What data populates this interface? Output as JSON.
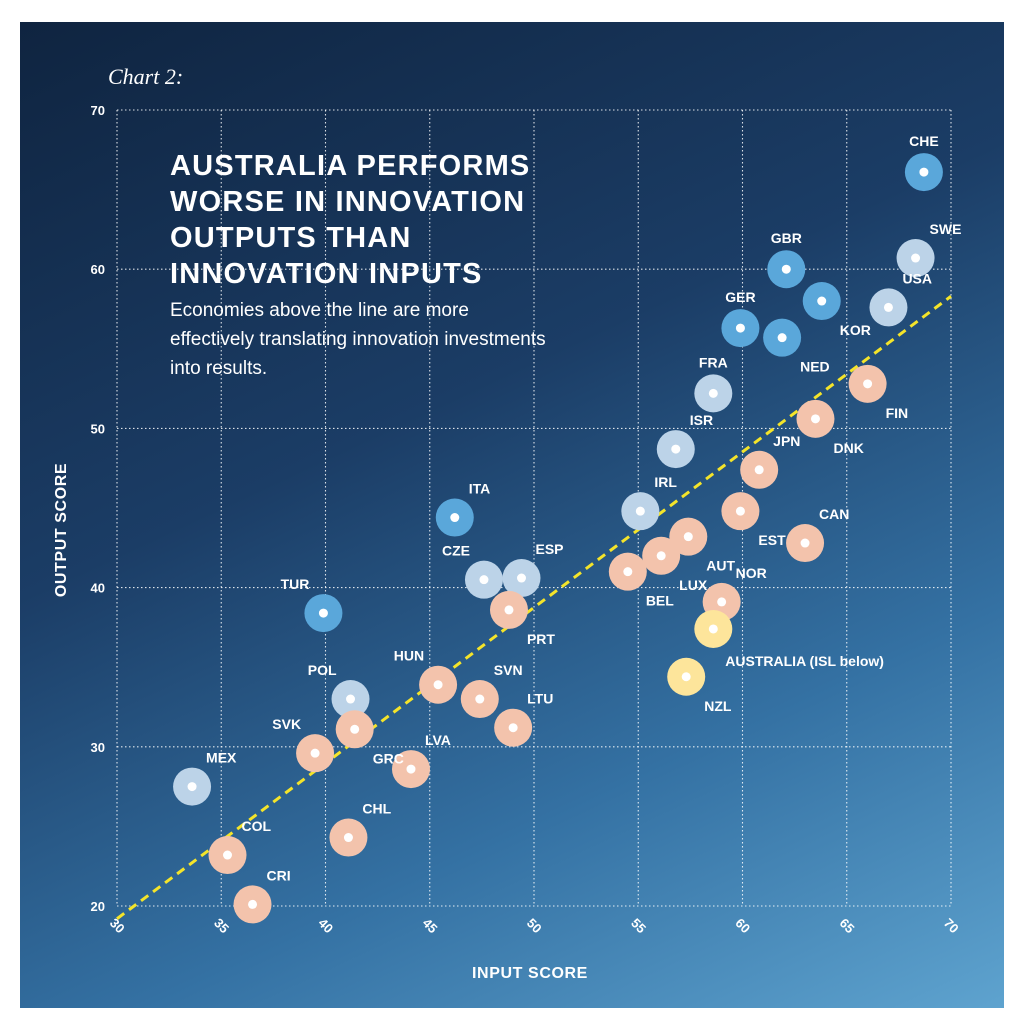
{
  "caption": "Chart 2:",
  "headline": "AUSTRALIA PERFORMS WORSE IN INNOVATION OUTPUTS THAN INNOVATION INPUTS",
  "subtitle": "Economies above the line are more effectively translating innovation investments into results.",
  "colors": {
    "dark_blue": "#5aa7da",
    "light_blue": "#bcd3e8",
    "peach": "#f3c3ac",
    "yellow": "#fde59b",
    "trend_line": "#f4e42a"
  },
  "chart_data": {
    "type": "scatter",
    "xlabel": "INPUT SCORE",
    "ylabel": "OUTPUT SCORE",
    "xlim": [
      30,
      70
    ],
    "ylim": [
      20,
      70
    ],
    "x_ticks": [
      30,
      35,
      40,
      45,
      50,
      55,
      60,
      65,
      70
    ],
    "y_ticks": [
      20,
      30,
      40,
      50,
      60,
      70
    ],
    "grid": true,
    "trend_line": {
      "x": [
        30,
        70
      ],
      "y": [
        19.2,
        58.3
      ]
    },
    "points": [
      {
        "label": "CHE",
        "x": 68.7,
        "y": 66.1,
        "color": "dark_blue",
        "label_pos": "above"
      },
      {
        "label": "SWE",
        "x": 68.3,
        "y": 60.7,
        "color": "light_blue",
        "label_pos": "above-right"
      },
      {
        "label": "GBR",
        "x": 62.1,
        "y": 60.0,
        "color": "dark_blue",
        "label_pos": "above"
      },
      {
        "label": "USA",
        "x": 67.0,
        "y": 57.6,
        "color": "light_blue",
        "label_pos": "above-right"
      },
      {
        "label": "KOR",
        "x": 63.8,
        "y": 58.0,
        "color": "dark_blue",
        "label_pos": "below-right"
      },
      {
        "label": "GER",
        "x": 59.9,
        "y": 56.3,
        "color": "dark_blue",
        "label_pos": "above"
      },
      {
        "label": "NED",
        "x": 61.9,
        "y": 55.7,
        "color": "dark_blue",
        "label_pos": "below-right"
      },
      {
        "label": "FRA",
        "x": 58.6,
        "y": 52.2,
        "color": "light_blue",
        "label_pos": "above"
      },
      {
        "label": "FIN",
        "x": 66.0,
        "y": 52.8,
        "color": "peach",
        "label_pos": "below-right"
      },
      {
        "label": "DNK",
        "x": 63.5,
        "y": 50.6,
        "color": "peach",
        "label_pos": "below-right"
      },
      {
        "label": "ISR",
        "x": 56.8,
        "y": 48.7,
        "color": "light_blue",
        "label_pos": "above-right"
      },
      {
        "label": "JPN",
        "x": 60.8,
        "y": 47.4,
        "color": "peach",
        "label_pos": "above-right"
      },
      {
        "label": "IRL",
        "x": 55.1,
        "y": 44.8,
        "color": "light_blue",
        "label_pos": "above-right"
      },
      {
        "label": "EST",
        "x": 59.9,
        "y": 44.8,
        "color": "peach",
        "label_pos": "below-right"
      },
      {
        "label": "ITA",
        "x": 46.2,
        "y": 44.4,
        "color": "dark_blue",
        "label_pos": "above-right"
      },
      {
        "label": "AUT",
        "x": 57.4,
        "y": 43.2,
        "color": "peach",
        "label_pos": "below-right"
      },
      {
        "label": "CAN",
        "x": 63.0,
        "y": 42.8,
        "color": "peach",
        "label_pos": "above-right"
      },
      {
        "label": "LUX",
        "x": 56.1,
        "y": 42.0,
        "color": "peach",
        "label_pos": "below-right"
      },
      {
        "label": "BEL",
        "x": 54.5,
        "y": 41.0,
        "color": "peach",
        "label_pos": "below-right"
      },
      {
        "label": "CZE",
        "x": 47.6,
        "y": 40.5,
        "color": "light_blue",
        "label_pos": "above-left"
      },
      {
        "label": "ESP",
        "x": 49.4,
        "y": 40.6,
        "color": "light_blue",
        "label_pos": "above-right"
      },
      {
        "label": "PRT",
        "x": 48.8,
        "y": 38.6,
        "color": "peach",
        "label_pos": "below-right"
      },
      {
        "label": "NOR",
        "x": 59.0,
        "y": 39.1,
        "color": "peach",
        "label_pos": "above-right"
      },
      {
        "label": "TUR",
        "x": 39.9,
        "y": 38.4,
        "color": "dark_blue",
        "label_pos": "above-left"
      },
      {
        "label": "AUSTRALIA (ISL below)",
        "x": 58.6,
        "y": 37.4,
        "color": "yellow",
        "label_pos": "right"
      },
      {
        "label": "NZL",
        "x": 57.3,
        "y": 34.4,
        "color": "yellow",
        "label_pos": "below-right"
      },
      {
        "label": "HUN",
        "x": 45.4,
        "y": 33.9,
        "color": "peach",
        "label_pos": "above-left"
      },
      {
        "label": "SVN",
        "x": 47.4,
        "y": 33.0,
        "color": "peach",
        "label_pos": "above-right"
      },
      {
        "label": "POL",
        "x": 41.2,
        "y": 33.0,
        "color": "light_blue",
        "label_pos": "above-left"
      },
      {
        "label": "LTU",
        "x": 49.0,
        "y": 31.2,
        "color": "peach",
        "label_pos": "above-right"
      },
      {
        "label": "GRC",
        "x": 41.4,
        "y": 31.1,
        "color": "peach",
        "label_pos": "below-right"
      },
      {
        "label": "SVK",
        "x": 39.5,
        "y": 29.6,
        "color": "peach",
        "label_pos": "above-left"
      },
      {
        "label": "LVA",
        "x": 44.1,
        "y": 28.6,
        "color": "peach",
        "label_pos": "above-right"
      },
      {
        "label": "MEX",
        "x": 33.6,
        "y": 27.5,
        "color": "light_blue",
        "label_pos": "above-right"
      },
      {
        "label": "CHL",
        "x": 41.1,
        "y": 24.3,
        "color": "peach",
        "label_pos": "above-right"
      },
      {
        "label": "COL",
        "x": 35.3,
        "y": 23.2,
        "color": "peach",
        "label_pos": "above-right"
      },
      {
        "label": "CRI",
        "x": 36.5,
        "y": 20.1,
        "color": "peach",
        "label_pos": "above-right"
      }
    ]
  }
}
